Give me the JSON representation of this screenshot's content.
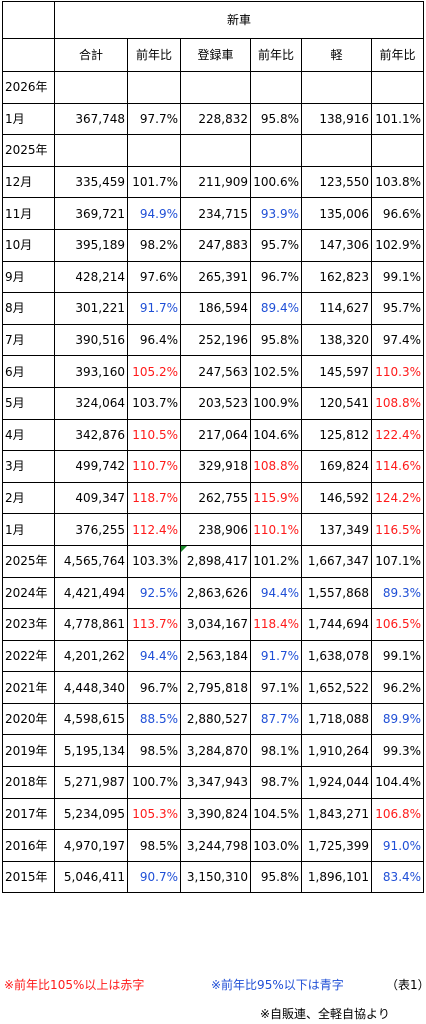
{
  "header": {
    "group": "新車",
    "columns": [
      "合計",
      "前年比",
      "登録車",
      "前年比",
      "軽",
      "前年比"
    ]
  },
  "rows": [
    {
      "label": "2026年",
      "section": true
    },
    {
      "label": "1月",
      "cells": [
        "367,748",
        "97.7%",
        "228,832",
        "95.8%",
        "138,916",
        "101.1%"
      ],
      "colors": [
        "",
        "",
        "",
        "",
        "",
        ""
      ]
    },
    {
      "label": "2025年",
      "section": true
    },
    {
      "label": "12月",
      "cells": [
        "335,459",
        "101.7%",
        "211,909",
        "100.6%",
        "123,550",
        "103.8%"
      ],
      "colors": [
        "",
        "",
        "",
        "",
        "",
        ""
      ]
    },
    {
      "label": "11月",
      "cells": [
        "369,721",
        "94.9%",
        "234,715",
        "93.9%",
        "135,006",
        "96.6%"
      ],
      "colors": [
        "",
        "blue",
        "",
        "blue",
        "",
        ""
      ]
    },
    {
      "label": "10月",
      "cells": [
        "395,189",
        "98.2%",
        "247,883",
        "95.7%",
        "147,306",
        "102.9%"
      ],
      "colors": [
        "",
        "",
        "",
        "",
        "",
        ""
      ]
    },
    {
      "label": "9月",
      "cells": [
        "428,214",
        "97.6%",
        "265,391",
        "96.7%",
        "162,823",
        "99.1%"
      ],
      "colors": [
        "",
        "",
        "",
        "",
        "",
        ""
      ]
    },
    {
      "label": "8月",
      "cells": [
        "301,221",
        "91.7%",
        "186,594",
        "89.4%",
        "114,627",
        "95.7%"
      ],
      "colors": [
        "",
        "blue",
        "",
        "blue",
        "",
        ""
      ]
    },
    {
      "label": "7月",
      "cells": [
        "390,516",
        "96.4%",
        "252,196",
        "95.8%",
        "138,320",
        "97.4%"
      ],
      "colors": [
        "",
        "",
        "",
        "",
        "",
        ""
      ]
    },
    {
      "label": "6月",
      "cells": [
        "393,160",
        "105.2%",
        "247,563",
        "102.5%",
        "145,597",
        "110.3%"
      ],
      "colors": [
        "",
        "red",
        "",
        "",
        "",
        "red"
      ]
    },
    {
      "label": "5月",
      "cells": [
        "324,064",
        "103.7%",
        "203,523",
        "100.9%",
        "120,541",
        "108.8%"
      ],
      "colors": [
        "",
        "",
        "",
        "",
        "",
        "red"
      ]
    },
    {
      "label": "4月",
      "cells": [
        "342,876",
        "110.5%",
        "217,064",
        "104.6%",
        "125,812",
        "122.4%"
      ],
      "colors": [
        "",
        "red",
        "",
        "",
        "",
        "red"
      ]
    },
    {
      "label": "3月",
      "cells": [
        "499,742",
        "110.7%",
        "329,918",
        "108.8%",
        "169,824",
        "114.6%"
      ],
      "colors": [
        "",
        "red",
        "",
        "red",
        "",
        "red"
      ]
    },
    {
      "label": "2月",
      "cells": [
        "409,347",
        "118.7%",
        "262,755",
        "115.9%",
        "146,592",
        "124.2%"
      ],
      "colors": [
        "",
        "red",
        "",
        "red",
        "",
        "red"
      ]
    },
    {
      "label": "1月",
      "cells": [
        "376,255",
        "112.4%",
        "238,906",
        "110.1%",
        "137,349",
        "116.5%"
      ],
      "colors": [
        "",
        "red",
        "",
        "red",
        "",
        "red"
      ]
    },
    {
      "label": "2025年",
      "cells": [
        "4,565,764",
        "103.3%",
        "2,898,417",
        "101.2%",
        "1,667,347",
        "107.1%"
      ],
      "colors": [
        "",
        "",
        "",
        "",
        "",
        ""
      ],
      "marker": true
    },
    {
      "label": "2024年",
      "cells": [
        "4,421,494",
        "92.5%",
        "2,863,626",
        "94.4%",
        "1,557,868",
        "89.3%"
      ],
      "colors": [
        "",
        "blue",
        "",
        "blue",
        "",
        "blue"
      ]
    },
    {
      "label": "2023年",
      "cells": [
        "4,778,861",
        "113.7%",
        "3,034,167",
        "118.4%",
        "1,744,694",
        "106.5%"
      ],
      "colors": [
        "",
        "red",
        "",
        "red",
        "",
        "red"
      ]
    },
    {
      "label": "2022年",
      "cells": [
        "4,201,262",
        "94.4%",
        "2,563,184",
        "91.7%",
        "1,638,078",
        "99.1%"
      ],
      "colors": [
        "",
        "blue",
        "",
        "blue",
        "",
        ""
      ]
    },
    {
      "label": "2021年",
      "cells": [
        "4,448,340",
        "96.7%",
        "2,795,818",
        "97.1%",
        "1,652,522",
        "96.2%"
      ],
      "colors": [
        "",
        "",
        "",
        "",
        "",
        ""
      ]
    },
    {
      "label": "2020年",
      "cells": [
        "4,598,615",
        "88.5%",
        "2,880,527",
        "87.7%",
        "1,718,088",
        "89.9%"
      ],
      "colors": [
        "",
        "blue",
        "",
        "blue",
        "",
        "blue"
      ]
    },
    {
      "label": "2019年",
      "cells": [
        "5,195,134",
        "98.5%",
        "3,284,870",
        "98.1%",
        "1,910,264",
        "99.3%"
      ],
      "colors": [
        "",
        "",
        "",
        "",
        "",
        ""
      ]
    },
    {
      "label": "2018年",
      "cells": [
        "5,271,987",
        "100.7%",
        "3,347,943",
        "98.7%",
        "1,924,044",
        "104.4%"
      ],
      "colors": [
        "",
        "",
        "",
        "",
        "",
        ""
      ]
    },
    {
      "label": "2017年",
      "cells": [
        "5,234,095",
        "105.3%",
        "3,390,824",
        "104.5%",
        "1,843,271",
        "106.8%"
      ],
      "colors": [
        "",
        "red",
        "",
        "",
        "",
        "red"
      ]
    },
    {
      "label": "2016年",
      "cells": [
        "4,970,197",
        "98.5%",
        "3,244,798",
        "103.0%",
        "1,725,399",
        "91.0%"
      ],
      "colors": [
        "",
        "",
        "",
        "",
        "",
        "blue"
      ]
    },
    {
      "label": "2015年",
      "cells": [
        "5,046,411",
        "90.7%",
        "3,150,310",
        "95.8%",
        "1,896,101",
        "83.4%"
      ],
      "colors": [
        "",
        "blue",
        "",
        "",
        "",
        "blue"
      ]
    }
  ],
  "notes": {
    "red": "※前年比105%以上は赤字",
    "blue": "※前年比95%以下は青字",
    "table_id": "（表1）",
    "source": "※自販連、全軽自協より"
  },
  "colors": {
    "red": "#ff1a1a",
    "blue": "#1f4fd6",
    "marker": "#1a8a2a"
  }
}
